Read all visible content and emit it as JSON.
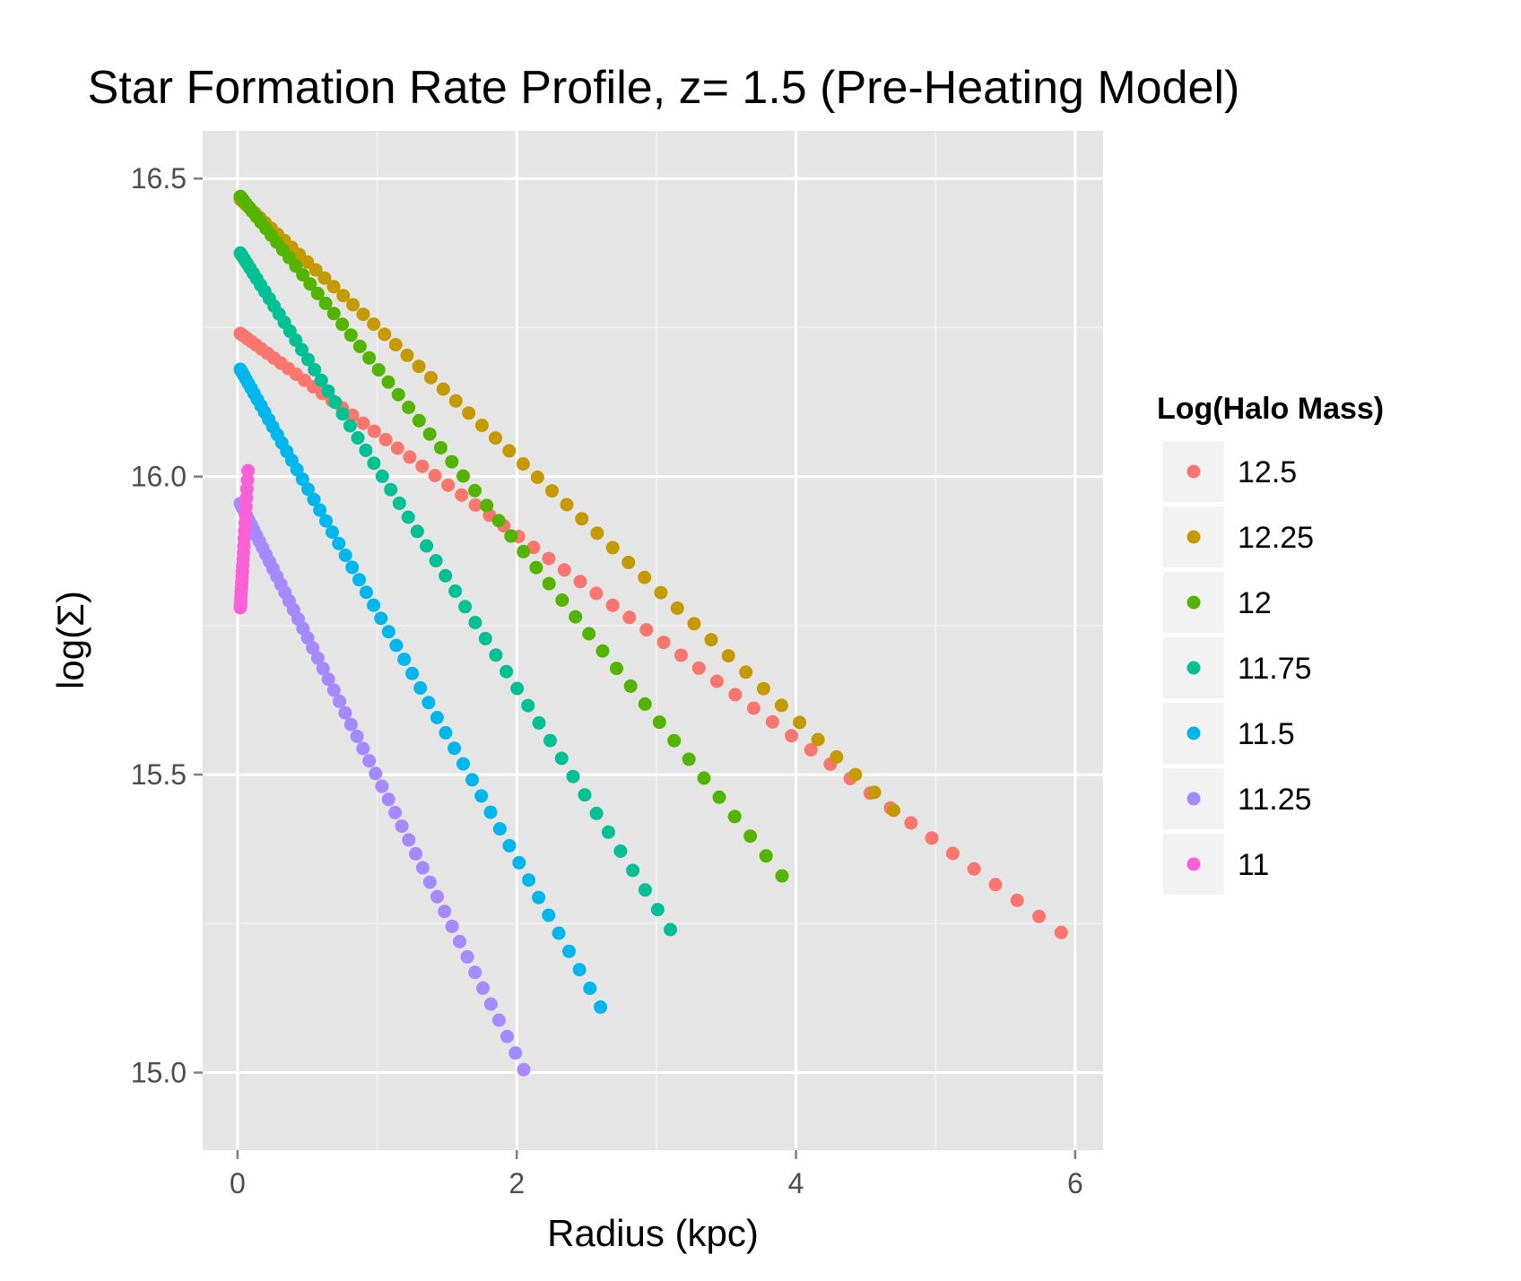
{
  "chart_data": {
    "type": "scatter",
    "title": "Star Formation Rate Profile, z= 1.5 (Pre-Heating Model)",
    "xlabel": "Radius (kpc)",
    "ylabel": "log(Σ)",
    "xlim": [
      -0.25,
      6.2
    ],
    "ylim": [
      14.87,
      16.58
    ],
    "x_ticks": [
      0,
      2,
      4,
      6
    ],
    "y_ticks": [
      15.0,
      15.5,
      16.0,
      16.5
    ],
    "x_tick_labels": [
      "0",
      "2",
      "4",
      "6"
    ],
    "y_tick_labels": [
      "15.0",
      "15.5",
      "16.0",
      "16.5"
    ],
    "grid": true,
    "legend": {
      "title": "Log(Halo Mass)",
      "position": "right"
    },
    "series": [
      {
        "name": "12.5",
        "color": "#F8766D",
        "x_max": 5.9,
        "y_start": 16.24,
        "y_end": 15.235,
        "n_points": 60
      },
      {
        "name": "12.25",
        "color": "#C49A00",
        "x_max": 4.7,
        "y_start": 16.465,
        "y_end": 15.44,
        "n_points": 55
      },
      {
        "name": "12",
        "color": "#53B400",
        "x_max": 3.9,
        "y_start": 16.47,
        "y_end": 15.33,
        "n_points": 55
      },
      {
        "name": "11.75",
        "color": "#00C094",
        "x_max": 3.1,
        "y_start": 16.375,
        "y_end": 15.24,
        "n_points": 55
      },
      {
        "name": "11.5",
        "color": "#00B6EB",
        "x_max": 2.6,
        "y_start": 16.18,
        "y_end": 15.11,
        "n_points": 55
      },
      {
        "name": "11.25",
        "color": "#A58AFF",
        "x_max": 2.05,
        "y_start": 15.955,
        "y_end": 15.005,
        "n_points": 55
      },
      {
        "name": "11",
        "color": "#FB61D7",
        "x_max": 0.075,
        "y_start": 15.78,
        "y_end": 16.01,
        "n_points": 24
      }
    ]
  }
}
